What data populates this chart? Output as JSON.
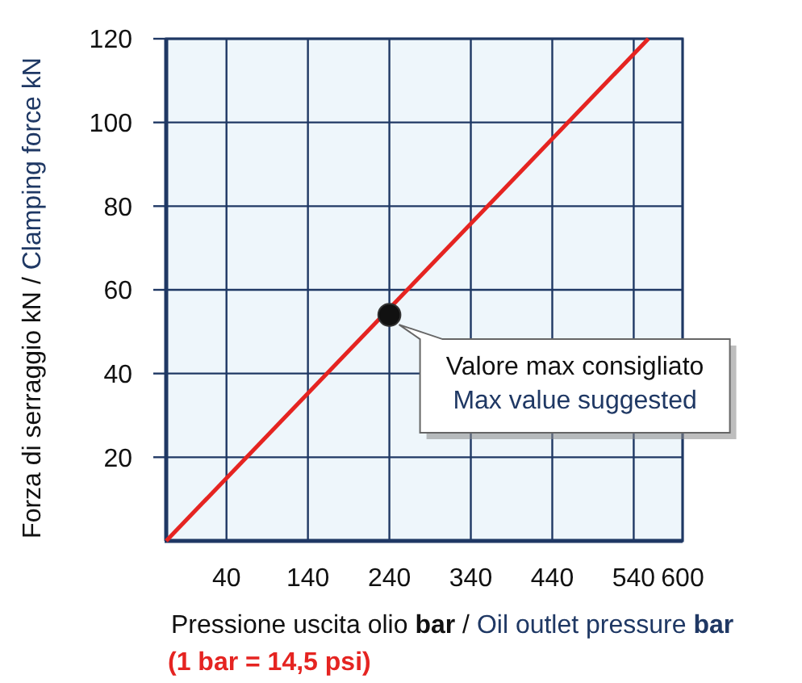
{
  "chart_data": {
    "type": "line",
    "xlabel": "Pressione uscita olio bar / Oil outlet pressure bar",
    "ylabel": "Forza di serraggio kN / Clamping force kN",
    "xlim": [
      -34,
      600
    ],
    "xticks": [
      40,
      140,
      240,
      340,
      440,
      540,
      600
    ],
    "ylim": [
      0,
      120
    ],
    "yticks": [
      20,
      40,
      60,
      80,
      100,
      120
    ],
    "grid": true,
    "series": [
      {
        "color": "#e52421",
        "x": [
          -34,
          558
        ],
        "values": [
          0,
          120
        ],
        "marker": "none"
      },
      {
        "type": "scatter",
        "color": "#111111",
        "x": [
          240
        ],
        "values": [
          54
        ],
        "marker": "circle"
      }
    ],
    "annotations": [
      {
        "text": "Valore max consigliato",
        "x": 240,
        "y": 54
      },
      "Max value suggested",
      "(1 bar = 14,5 psi)"
    ]
  }
}
